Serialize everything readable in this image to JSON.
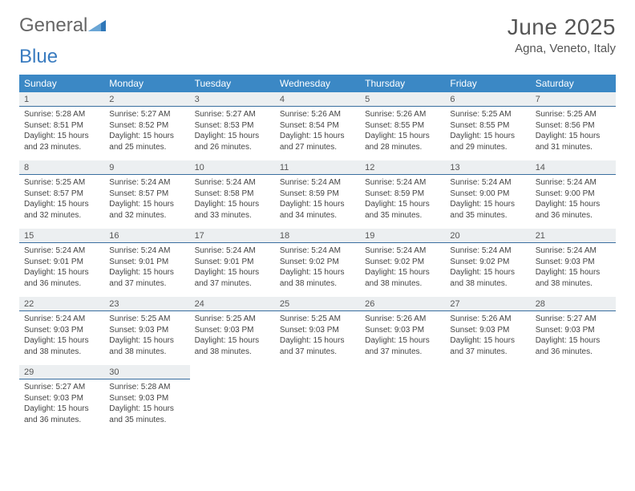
{
  "branding": {
    "word1": "General",
    "word2": "Blue",
    "triangle_color": "#2f77b8"
  },
  "title": "June 2025",
  "location": "Agna, Veneto, Italy",
  "colors": {
    "header_bg": "#3b88c5",
    "header_text": "#ffffff",
    "daynum_bg": "#eceff1",
    "daynum_border": "#3a6fa0",
    "body_text": "#444444",
    "title_text": "#555555"
  },
  "fonts": {
    "title_size_pt": 21,
    "location_size_pt": 11,
    "dow_size_pt": 9,
    "daynum_size_pt": 8,
    "cell_size_pt": 7.5
  },
  "days_of_week": [
    "Sunday",
    "Monday",
    "Tuesday",
    "Wednesday",
    "Thursday",
    "Friday",
    "Saturday"
  ],
  "weeks": [
    [
      {
        "num": "1",
        "sunrise": "Sunrise: 5:28 AM",
        "sunset": "Sunset: 8:51 PM",
        "daylight": "Daylight: 15 hours and 23 minutes."
      },
      {
        "num": "2",
        "sunrise": "Sunrise: 5:27 AM",
        "sunset": "Sunset: 8:52 PM",
        "daylight": "Daylight: 15 hours and 25 minutes."
      },
      {
        "num": "3",
        "sunrise": "Sunrise: 5:27 AM",
        "sunset": "Sunset: 8:53 PM",
        "daylight": "Daylight: 15 hours and 26 minutes."
      },
      {
        "num": "4",
        "sunrise": "Sunrise: 5:26 AM",
        "sunset": "Sunset: 8:54 PM",
        "daylight": "Daylight: 15 hours and 27 minutes."
      },
      {
        "num": "5",
        "sunrise": "Sunrise: 5:26 AM",
        "sunset": "Sunset: 8:55 PM",
        "daylight": "Daylight: 15 hours and 28 minutes."
      },
      {
        "num": "6",
        "sunrise": "Sunrise: 5:25 AM",
        "sunset": "Sunset: 8:55 PM",
        "daylight": "Daylight: 15 hours and 29 minutes."
      },
      {
        "num": "7",
        "sunrise": "Sunrise: 5:25 AM",
        "sunset": "Sunset: 8:56 PM",
        "daylight": "Daylight: 15 hours and 31 minutes."
      }
    ],
    [
      {
        "num": "8",
        "sunrise": "Sunrise: 5:25 AM",
        "sunset": "Sunset: 8:57 PM",
        "daylight": "Daylight: 15 hours and 32 minutes."
      },
      {
        "num": "9",
        "sunrise": "Sunrise: 5:24 AM",
        "sunset": "Sunset: 8:57 PM",
        "daylight": "Daylight: 15 hours and 32 minutes."
      },
      {
        "num": "10",
        "sunrise": "Sunrise: 5:24 AM",
        "sunset": "Sunset: 8:58 PM",
        "daylight": "Daylight: 15 hours and 33 minutes."
      },
      {
        "num": "11",
        "sunrise": "Sunrise: 5:24 AM",
        "sunset": "Sunset: 8:59 PM",
        "daylight": "Daylight: 15 hours and 34 minutes."
      },
      {
        "num": "12",
        "sunrise": "Sunrise: 5:24 AM",
        "sunset": "Sunset: 8:59 PM",
        "daylight": "Daylight: 15 hours and 35 minutes."
      },
      {
        "num": "13",
        "sunrise": "Sunrise: 5:24 AM",
        "sunset": "Sunset: 9:00 PM",
        "daylight": "Daylight: 15 hours and 35 minutes."
      },
      {
        "num": "14",
        "sunrise": "Sunrise: 5:24 AM",
        "sunset": "Sunset: 9:00 PM",
        "daylight": "Daylight: 15 hours and 36 minutes."
      }
    ],
    [
      {
        "num": "15",
        "sunrise": "Sunrise: 5:24 AM",
        "sunset": "Sunset: 9:01 PM",
        "daylight": "Daylight: 15 hours and 36 minutes."
      },
      {
        "num": "16",
        "sunrise": "Sunrise: 5:24 AM",
        "sunset": "Sunset: 9:01 PM",
        "daylight": "Daylight: 15 hours and 37 minutes."
      },
      {
        "num": "17",
        "sunrise": "Sunrise: 5:24 AM",
        "sunset": "Sunset: 9:01 PM",
        "daylight": "Daylight: 15 hours and 37 minutes."
      },
      {
        "num": "18",
        "sunrise": "Sunrise: 5:24 AM",
        "sunset": "Sunset: 9:02 PM",
        "daylight": "Daylight: 15 hours and 38 minutes."
      },
      {
        "num": "19",
        "sunrise": "Sunrise: 5:24 AM",
        "sunset": "Sunset: 9:02 PM",
        "daylight": "Daylight: 15 hours and 38 minutes."
      },
      {
        "num": "20",
        "sunrise": "Sunrise: 5:24 AM",
        "sunset": "Sunset: 9:02 PM",
        "daylight": "Daylight: 15 hours and 38 minutes."
      },
      {
        "num": "21",
        "sunrise": "Sunrise: 5:24 AM",
        "sunset": "Sunset: 9:03 PM",
        "daylight": "Daylight: 15 hours and 38 minutes."
      }
    ],
    [
      {
        "num": "22",
        "sunrise": "Sunrise: 5:24 AM",
        "sunset": "Sunset: 9:03 PM",
        "daylight": "Daylight: 15 hours and 38 minutes."
      },
      {
        "num": "23",
        "sunrise": "Sunrise: 5:25 AM",
        "sunset": "Sunset: 9:03 PM",
        "daylight": "Daylight: 15 hours and 38 minutes."
      },
      {
        "num": "24",
        "sunrise": "Sunrise: 5:25 AM",
        "sunset": "Sunset: 9:03 PM",
        "daylight": "Daylight: 15 hours and 38 minutes."
      },
      {
        "num": "25",
        "sunrise": "Sunrise: 5:25 AM",
        "sunset": "Sunset: 9:03 PM",
        "daylight": "Daylight: 15 hours and 37 minutes."
      },
      {
        "num": "26",
        "sunrise": "Sunrise: 5:26 AM",
        "sunset": "Sunset: 9:03 PM",
        "daylight": "Daylight: 15 hours and 37 minutes."
      },
      {
        "num": "27",
        "sunrise": "Sunrise: 5:26 AM",
        "sunset": "Sunset: 9:03 PM",
        "daylight": "Daylight: 15 hours and 37 minutes."
      },
      {
        "num": "28",
        "sunrise": "Sunrise: 5:27 AM",
        "sunset": "Sunset: 9:03 PM",
        "daylight": "Daylight: 15 hours and 36 minutes."
      }
    ],
    [
      {
        "num": "29",
        "sunrise": "Sunrise: 5:27 AM",
        "sunset": "Sunset: 9:03 PM",
        "daylight": "Daylight: 15 hours and 36 minutes."
      },
      {
        "num": "30",
        "sunrise": "Sunrise: 5:28 AM",
        "sunset": "Sunset: 9:03 PM",
        "daylight": "Daylight: 15 hours and 35 minutes."
      },
      null,
      null,
      null,
      null,
      null
    ]
  ]
}
